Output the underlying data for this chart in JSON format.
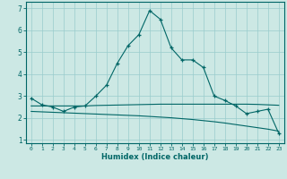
{
  "xlabel": "Humidex (Indice chaleur)",
  "ylabel": "",
  "background_color": "#cce8e4",
  "grid_color": "#99cccc",
  "line_color": "#006666",
  "spine_color": "#006666",
  "xlim": [
    -0.5,
    23.5
  ],
  "ylim": [
    0.85,
    7.3
  ],
  "yticks": [
    1,
    2,
    3,
    4,
    5,
    6,
    7
  ],
  "xticks": [
    0,
    1,
    2,
    3,
    4,
    5,
    6,
    7,
    8,
    9,
    10,
    11,
    12,
    13,
    14,
    15,
    16,
    17,
    18,
    19,
    20,
    21,
    22,
    23
  ],
  "series1_x": [
    0,
    1,
    2,
    3,
    4,
    5,
    6,
    7,
    8,
    9,
    10,
    11,
    12,
    13,
    14,
    15,
    16,
    17,
    18,
    19,
    20,
    21,
    22,
    23
  ],
  "series1_y": [
    2.9,
    2.6,
    2.5,
    2.3,
    2.5,
    2.55,
    3.0,
    3.5,
    4.5,
    5.3,
    5.8,
    6.9,
    6.5,
    5.2,
    4.65,
    4.65,
    4.3,
    3.0,
    2.8,
    2.55,
    2.2,
    2.3,
    2.4,
    1.3
  ],
  "series2_x": [
    0,
    1,
    2,
    3,
    4,
    5,
    6,
    7,
    8,
    9,
    10,
    11,
    12,
    13,
    14,
    15,
    16,
    17,
    18,
    19,
    20,
    21,
    22,
    23
  ],
  "series2_y": [
    2.55,
    2.55,
    2.55,
    2.55,
    2.55,
    2.55,
    2.57,
    2.58,
    2.59,
    2.6,
    2.61,
    2.62,
    2.63,
    2.63,
    2.63,
    2.63,
    2.63,
    2.63,
    2.63,
    2.63,
    2.63,
    2.62,
    2.6,
    2.58
  ],
  "series3_x": [
    0,
    1,
    2,
    3,
    4,
    5,
    6,
    7,
    8,
    9,
    10,
    11,
    12,
    13,
    14,
    15,
    16,
    17,
    18,
    19,
    20,
    21,
    22,
    23
  ],
  "series3_y": [
    2.3,
    2.28,
    2.26,
    2.24,
    2.22,
    2.2,
    2.18,
    2.16,
    2.14,
    2.12,
    2.1,
    2.07,
    2.04,
    2.01,
    1.97,
    1.93,
    1.88,
    1.83,
    1.77,
    1.7,
    1.63,
    1.56,
    1.49,
    1.4
  ]
}
